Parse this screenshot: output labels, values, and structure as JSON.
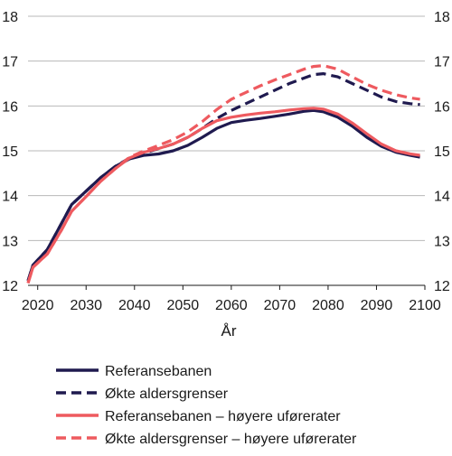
{
  "chart_data": {
    "type": "line",
    "title": "",
    "xlabel": "År",
    "ylabel": "",
    "xlim": [
      2018,
      2100
    ],
    "ylim": [
      12,
      18
    ],
    "x_ticks": [
      "2020",
      "2030",
      "2040",
      "2050",
      "2060",
      "2070",
      "2080",
      "2090",
      "2100"
    ],
    "y_ticks": [
      "12",
      "13",
      "14",
      "15",
      "16",
      "17",
      "18"
    ],
    "grid": "horizontal",
    "legend_position": "bottom",
    "series": [
      {
        "name": "Referansebanen",
        "color": "#1f1a4f",
        "dash": "solid",
        "x": [
          2018,
          2019,
          2022,
          2025,
          2027,
          2030,
          2033,
          2036,
          2039,
          2042,
          2045,
          2048,
          2051,
          2054,
          2057,
          2060,
          2063,
          2066,
          2069,
          2072,
          2075,
          2077,
          2079,
          2082,
          2085,
          2088,
          2091,
          2094,
          2097,
          2099
        ],
        "y": [
          12.1,
          12.45,
          12.8,
          13.4,
          13.8,
          14.1,
          14.4,
          14.65,
          14.82,
          14.9,
          14.93,
          15.0,
          15.12,
          15.3,
          15.5,
          15.63,
          15.68,
          15.72,
          15.77,
          15.82,
          15.88,
          15.9,
          15.87,
          15.75,
          15.55,
          15.3,
          15.1,
          14.97,
          14.9,
          14.86
        ]
      },
      {
        "name": "Økte aldersgrenser",
        "color": "#1f1a4f",
        "dash": "dashed",
        "x": [
          2018,
          2019,
          2022,
          2025,
          2027,
          2030,
          2033,
          2036,
          2039,
          2042,
          2045,
          2048,
          2051,
          2054,
          2057,
          2060,
          2063,
          2066,
          2069,
          2072,
          2075,
          2077,
          2079,
          2082,
          2085,
          2088,
          2091,
          2094,
          2097,
          2099
        ],
        "y": [
          12.1,
          12.45,
          12.8,
          13.4,
          13.8,
          14.1,
          14.4,
          14.65,
          14.84,
          14.95,
          15.05,
          15.15,
          15.3,
          15.5,
          15.72,
          15.9,
          16.05,
          16.2,
          16.35,
          16.5,
          16.62,
          16.7,
          16.72,
          16.65,
          16.5,
          16.35,
          16.2,
          16.1,
          16.05,
          16.03
        ]
      },
      {
        "name": "Referansebanen – høyere uførerater",
        "color": "#ee5a5f",
        "dash": "solid",
        "x": [
          2018,
          2019,
          2022,
          2025,
          2027,
          2030,
          2033,
          2036,
          2039,
          2042,
          2045,
          2048,
          2051,
          2054,
          2057,
          2060,
          2063,
          2066,
          2069,
          2072,
          2075,
          2077,
          2079,
          2082,
          2085,
          2088,
          2091,
          2094,
          2097,
          2099
        ],
        "y": [
          12.05,
          12.4,
          12.7,
          13.25,
          13.65,
          13.98,
          14.32,
          14.6,
          14.84,
          14.97,
          15.05,
          15.15,
          15.3,
          15.5,
          15.67,
          15.75,
          15.8,
          15.84,
          15.87,
          15.91,
          15.94,
          15.95,
          15.93,
          15.82,
          15.62,
          15.38,
          15.15,
          15.0,
          14.93,
          14.9
        ]
      },
      {
        "name": "Økte aldersgrenser – høyere uførerater",
        "color": "#ee5a5f",
        "dash": "dashed",
        "x": [
          2018,
          2019,
          2022,
          2025,
          2027,
          2030,
          2033,
          2036,
          2039,
          2042,
          2045,
          2048,
          2051,
          2054,
          2057,
          2060,
          2063,
          2066,
          2069,
          2072,
          2075,
          2077,
          2079,
          2082,
          2085,
          2088,
          2091,
          2094,
          2097,
          2099
        ],
        "y": [
          12.05,
          12.4,
          12.7,
          13.25,
          13.65,
          13.98,
          14.32,
          14.6,
          14.86,
          15.0,
          15.12,
          15.25,
          15.42,
          15.65,
          15.92,
          16.15,
          16.3,
          16.45,
          16.58,
          16.7,
          16.82,
          16.88,
          16.9,
          16.82,
          16.65,
          16.48,
          16.35,
          16.25,
          16.18,
          16.15
        ]
      }
    ]
  }
}
